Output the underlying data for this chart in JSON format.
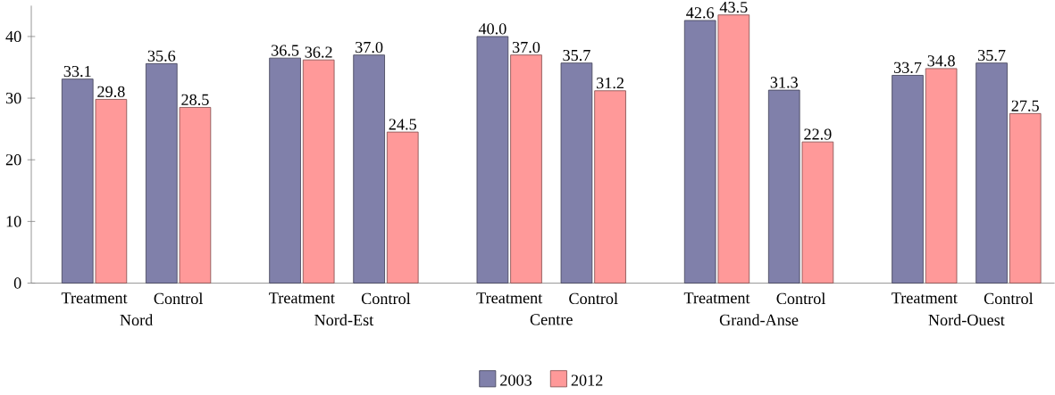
{
  "chart_data": {
    "type": "bar",
    "categories": [
      "Treatment",
      "Control",
      "Treatment",
      "Control",
      "Treatment",
      "Control",
      "Treatment",
      "Control",
      "Treatment",
      "Control"
    ],
    "annotations": [
      "Nord",
      "Nord-Est",
      "Centre",
      "Grand-Anse",
      "Nord-Ouest"
    ],
    "series": [
      {
        "name": "2003",
        "color": "#8080aa",
        "values": [
          33.1,
          35.6,
          36.5,
          37.0,
          40.0,
          35.7,
          42.6,
          31.3,
          33.7,
          35.7
        ],
        "value_labels": [
          "33.1",
          "35.6",
          "36.5",
          "37.0",
          "40.0",
          "35.7",
          "42.6",
          "31.3",
          "33.7",
          "35.7"
        ]
      },
      {
        "name": "2012",
        "color": "#ff9999",
        "values": [
          29.8,
          28.5,
          36.2,
          24.5,
          37.0,
          31.2,
          43.5,
          22.9,
          34.8,
          27.5
        ],
        "value_labels": [
          "29.8",
          "28.5",
          "36.2",
          "24.5",
          "37.0",
          "31.2",
          "43.5",
          "22.9",
          "34.8",
          "27.5"
        ]
      }
    ],
    "ylim": [
      0,
      45
    ],
    "yticks": [
      0,
      10,
      20,
      30,
      40
    ],
    "legend": "bottom",
    "grid": false
  }
}
